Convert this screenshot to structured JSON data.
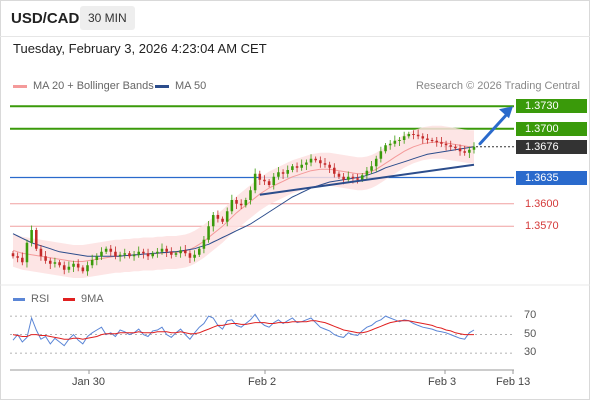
{
  "header": {
    "symbol": "USD/CAD",
    "timeframe": "30 MIN",
    "datetime": "Tuesday, February 3, 2026 4:23:04 AM CET"
  },
  "legend": {
    "ma20": "MA 20 + Bollinger Bands",
    "ma50": "MA 50",
    "credit": "Research © 2026 Trading Central"
  },
  "colors": {
    "resistance": "#3a9a0a",
    "support": "#2a6acc",
    "current": "#333333",
    "level_red": "#d43a3a",
    "bollinger": "#fde0e0",
    "ma20": "#f49a9a",
    "ma50": "#2c4d8c",
    "candle_up": "#3a9a0a",
    "candle_down": "#c42a2a",
    "rsi": "#5b86d6",
    "rsi_ma": "#e02020",
    "arrow": "#2a6acc"
  },
  "levels": [
    {
      "label": "1.3730",
      "type": "resistance"
    },
    {
      "label": "1.3700",
      "type": "resistance"
    },
    {
      "label": "1.3676",
      "type": "current"
    },
    {
      "label": "1.3635",
      "type": "support"
    },
    {
      "label": "1.3600",
      "type": "level_red"
    },
    {
      "label": "1.3570",
      "type": "level_red"
    }
  ],
  "rsi_panel": {
    "rsi_label": "RSI",
    "ma_label": "9MA",
    "ticks": [
      "70",
      "50",
      "30"
    ]
  },
  "x_axis": {
    "ticks": [
      "Jan 30",
      "Feb 2",
      "Feb 3",
      "Feb 13"
    ]
  },
  "chart_data": {
    "type": "candlestick",
    "price_range": [
      1.3505,
      1.3745
    ],
    "key_levels": [
      1.373,
      1.37,
      1.3676,
      1.3635,
      1.36,
      1.357
    ],
    "rsi_range": [
      15,
      82
    ],
    "rsi_ticks": [
      70,
      50,
      30
    ],
    "x_ticks": [
      "Jan 30",
      "Feb 2",
      "Feb 3",
      "Feb 13"
    ],
    "close_path": [
      1.353,
      1.3528,
      1.3522,
      1.3548,
      1.3565,
      1.354,
      1.353,
      1.3524,
      1.352,
      1.3522,
      1.3518,
      1.3512,
      1.3516,
      1.352,
      1.3515,
      1.351,
      1.3518,
      1.3525,
      1.353,
      1.3536,
      1.354,
      1.3536,
      1.353,
      1.3532,
      1.3534,
      1.353,
      1.3532,
      1.3536,
      1.3534,
      1.353,
      1.3534,
      1.3536,
      1.354,
      1.3536,
      1.3532,
      1.3534,
      1.3538,
      1.3534,
      1.3528,
      1.3532,
      1.354,
      1.3552,
      1.357,
      1.3585,
      1.358,
      1.3576,
      1.359,
      1.3605,
      1.36,
      1.3598,
      1.3605,
      1.3618,
      1.364,
      1.3632,
      1.363,
      1.3625,
      1.3636,
      1.3642,
      1.364,
      1.3645,
      1.365,
      1.3648,
      1.3652,
      1.3655,
      1.366,
      1.3658,
      1.3654,
      1.3652,
      1.3648,
      1.364,
      1.3636,
      1.3632,
      1.3636,
      1.3634,
      1.3632,
      1.3638,
      1.3644,
      1.365,
      1.366,
      1.367,
      1.3678,
      1.368,
      1.3684,
      1.3685,
      1.369,
      1.3693,
      1.3692,
      1.369,
      1.3687,
      1.3685,
      1.3684,
      1.3682,
      1.368,
      1.3678,
      1.3676,
      1.3674,
      1.367,
      1.3668,
      1.3672,
      1.3676
    ],
    "ma20": [
      1.3538,
      1.3536,
      1.3534,
      1.3533,
      1.3532,
      1.3531,
      1.353,
      1.3529,
      1.3528,
      1.3527,
      1.3526,
      1.3525,
      1.3524,
      1.3523,
      1.3523,
      1.3523,
      1.3524,
      1.3525,
      1.3526,
      1.3527,
      1.3528,
      1.3529,
      1.353,
      1.353,
      1.3531,
      1.3531,
      1.3532,
      1.3532,
      1.3533,
      1.3533,
      1.3533,
      1.3534,
      1.3534,
      1.3535,
      1.3535,
      1.3535,
      1.3536,
      1.3537,
      1.3539,
      1.3542,
      1.3546,
      1.355,
      1.3555,
      1.356,
      1.3565,
      1.357,
      1.3576,
      1.3582,
      1.3588,
      1.3593,
      1.3598,
      1.3603,
      1.3608,
      1.3613,
      1.3617,
      1.3621,
      1.3624,
      1.3627,
      1.363,
      1.3633,
      1.3636,
      1.3638,
      1.364,
      1.3642,
      1.3644,
      1.3645,
      1.3646,
      1.3646,
      1.3646,
      1.3645,
      1.3644,
      1.3643,
      1.3642,
      1.3641,
      1.364,
      1.364,
      1.3641,
      1.3643,
      1.3646,
      1.365,
      1.3654,
      1.3658,
      1.3662,
      1.3666,
      1.367,
      1.3673,
      1.3676,
      1.3678,
      1.368,
      1.3681,
      1.3682,
      1.3682,
      1.3682,
      1.3681,
      1.368,
      1.3679,
      1.3678,
      1.3677,
      1.3676,
      1.3676
    ],
    "ma50": [
      1.356,
      1.3557,
      1.3554,
      1.3551,
      1.3548,
      1.3546,
      1.3544,
      1.3542,
      1.354,
      1.3538,
      1.3536,
      1.3535,
      1.3534,
      1.3533,
      1.3532,
      1.3531,
      1.353,
      1.353,
      1.353,
      1.353,
      1.353,
      1.353,
      1.353,
      1.353,
      1.3531,
      1.3531,
      1.3532,
      1.3532,
      1.3533,
      1.3533,
      1.3534,
      1.3534,
      1.3535,
      1.3535,
      1.3536,
      1.3536,
      1.3537,
      1.3538,
      1.3539,
      1.354,
      1.3542,
      1.3544,
      1.3546,
      1.3549,
      1.3552,
      1.3555,
      1.3558,
      1.3561,
      1.3564,
      1.3567,
      1.357,
      1.3573,
      1.3577,
      1.3581,
      1.3585,
      1.3589,
      1.3593,
      1.3597,
      1.3601,
      1.3605,
      1.3609,
      1.3612,
      1.3615,
      1.3618,
      1.3621,
      1.3623,
      1.3625,
      1.3627,
      1.3629,
      1.363,
      1.3631,
      1.3632,
      1.3633,
      1.3634,
      1.3635,
      1.3636,
      1.3638,
      1.364,
      1.3642,
      1.3645,
      1.3648,
      1.365,
      1.3652,
      1.3654,
      1.3656,
      1.3658,
      1.366,
      1.3662,
      1.3664,
      1.3666,
      1.3667,
      1.3668,
      1.3669,
      1.367,
      1.3671,
      1.3672,
      1.3673,
      1.3674,
      1.3675,
      1.3676
    ],
    "bb_half_width": 0.0022,
    "rsi": [
      44,
      50,
      42,
      47,
      68,
      55,
      45,
      48,
      40,
      46,
      42,
      38,
      45,
      50,
      44,
      40,
      48,
      52,
      55,
      58,
      50,
      52,
      48,
      55,
      53,
      50,
      52,
      56,
      50,
      48,
      54,
      55,
      58,
      50,
      47,
      52,
      56,
      50,
      45,
      52,
      58,
      62,
      70,
      68,
      60,
      56,
      65,
      66,
      60,
      58,
      62,
      66,
      72,
      64,
      60,
      58,
      63,
      66,
      62,
      65,
      68,
      63,
      64,
      66,
      68,
      63,
      58,
      56,
      54,
      50,
      48,
      47,
      52,
      50,
      49,
      54,
      58,
      60,
      64,
      66,
      70,
      68,
      66,
      64,
      66,
      65,
      62,
      60,
      58,
      57,
      56,
      54,
      53,
      52,
      50,
      48,
      46,
      45,
      52,
      55
    ],
    "rsi_ma": [
      50,
      49,
      48,
      48,
      50,
      50,
      49,
      49,
      48,
      47,
      46,
      45,
      45,
      46,
      46,
      45,
      46,
      47,
      48,
      50,
      51,
      51,
      51,
      52,
      52,
      52,
      52,
      53,
      52,
      52,
      52,
      53,
      53,
      53,
      52,
      52,
      53,
      52,
      51,
      51,
      52,
      54,
      56,
      58,
      60,
      60,
      61,
      62,
      62,
      61,
      61,
      62,
      63,
      63,
      63,
      62,
      62,
      63,
      63,
      63,
      64,
      64,
      64,
      64,
      65,
      65,
      64,
      63,
      61,
      59,
      57,
      55,
      54,
      53,
      52,
      52,
      53,
      55,
      57,
      59,
      61,
      63,
      64,
      65,
      65,
      65,
      64,
      63,
      62,
      61,
      60,
      58,
      57,
      55,
      54,
      52,
      51,
      50,
      50,
      50
    ]
  }
}
